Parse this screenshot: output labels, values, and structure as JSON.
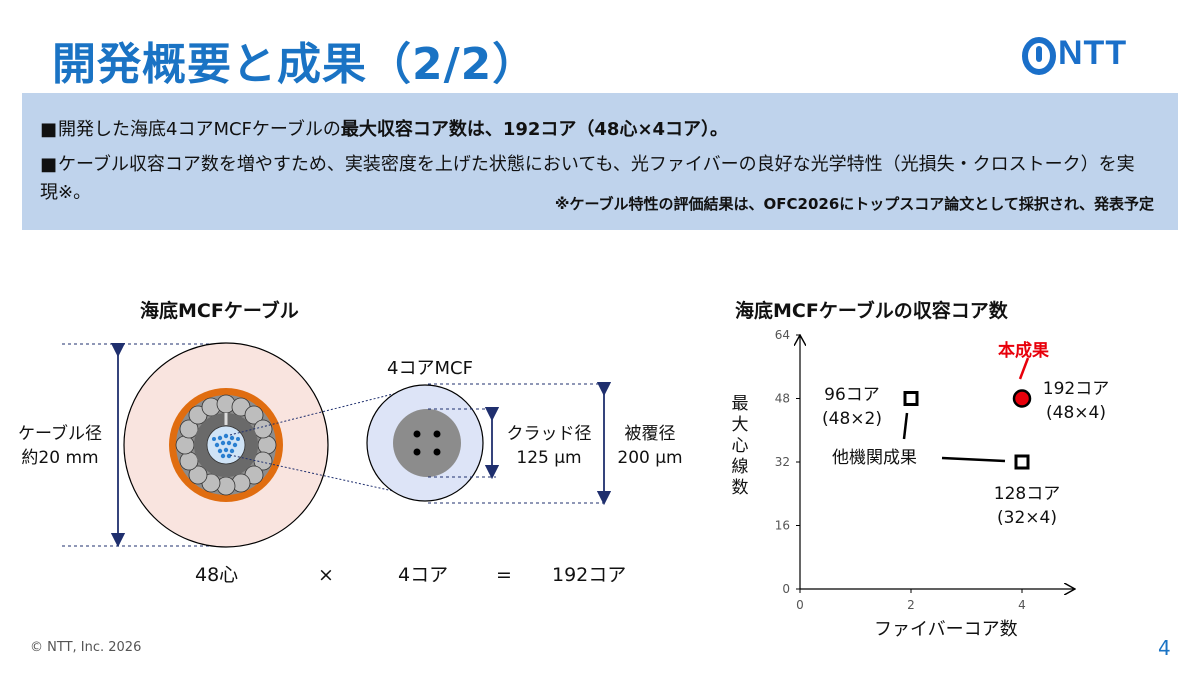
{
  "header": {
    "title": "開発概要と成果（2/2）",
    "logo_text": "NTT"
  },
  "summary": {
    "bullet_mark": "■",
    "bullet1_prefix": "開発した海底4コアMCFケーブルの",
    "bullet1_bold": "最大収容コア数は、192コア（48心×4コア）。",
    "bullet2": "ケーブル収容コア数を増やすため、実装密度を上げた状態においても、光ファイバーの良好な光学特性（光損失・クロストーク）を実現※。",
    "note": "※ケーブル特性の評価結果は、OFC2026にトップスコア論文として採択され、発表予定"
  },
  "left_figure": {
    "caption": "海底MCFケーブル",
    "cable_diameter_label": "ケーブル径",
    "cable_diameter_value": "約20 mm",
    "fiber_label": "4コアMCF",
    "cladding_label": "クラッド径",
    "cladding_value": "125 μm",
    "coating_label": "被覆径",
    "coating_value": "200 μm",
    "equation": {
      "a": "48心",
      "times": "×",
      "b": "4コア",
      "equals": "=",
      "result": "192コア"
    }
  },
  "right_figure": {
    "caption": "海底MCFケーブルの収容コア数",
    "chart_data": {
      "type": "scatter",
      "xlabel": "ファイバーコア数",
      "ylabel": "最大心線数",
      "xlim": [
        0,
        4
      ],
      "ylim": [
        0,
        64
      ],
      "xticks": [
        0,
        2,
        4
      ],
      "yticks": [
        0,
        16,
        32,
        48,
        64
      ],
      "series": [
        {
          "name": "他機関成果",
          "points": [
            {
              "x": 2,
              "y": 48,
              "label_line1": "96コア",
              "label_line2": "(48×2)"
            },
            {
              "x": 4,
              "y": 32,
              "label_line1": "128コア",
              "label_line2": "(32×4)"
            }
          ]
        },
        {
          "name": "本成果",
          "points": [
            {
              "x": 4,
              "y": 48,
              "label_line1": "192コア",
              "label_line2": "(48×4)"
            }
          ]
        }
      ],
      "colors": {
        "highlight": "#e8000b",
        "other": "#000000"
      }
    }
  },
  "footer": {
    "copyright": "© NTT, Inc.  2026",
    "page": "4"
  }
}
